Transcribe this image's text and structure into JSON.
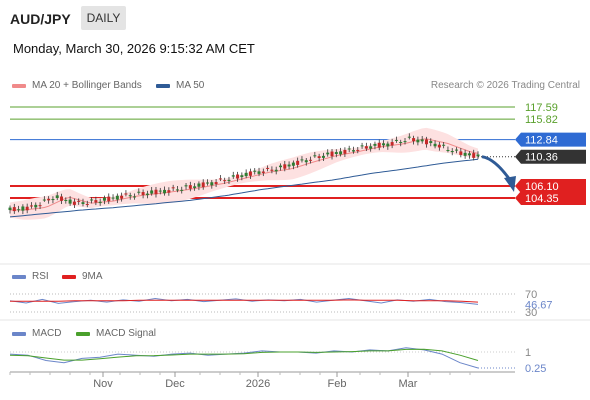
{
  "header": {
    "symbol": "AUD/JPY",
    "period": "DAILY",
    "datetime": "Monday, March 30, 2026 9:15:32 AM CET"
  },
  "main_chart": {
    "legend": [
      {
        "label": "MA 20 + Bollinger Bands",
        "color": "#f08a8a"
      },
      {
        "label": "MA 50",
        "color": "#2f5b96"
      }
    ],
    "credit": "Research © 2026 Trading Central"
  },
  "rsi_panel": {
    "legend": [
      {
        "label": "RSI",
        "color": "#6b86c9"
      },
      {
        "label": "9MA",
        "color": "#e02020"
      }
    ]
  },
  "macd_panel": {
    "legend": [
      {
        "label": "MACD",
        "color": "#6b86c9"
      },
      {
        "label": "MACD Signal",
        "color": "#4aa02c"
      }
    ]
  },
  "colors": {
    "resistance": "#5aa02c",
    "pivot": "#2f6bd3",
    "support": "#e02020",
    "arrow": "#2f5b96"
  },
  "chart_data": [
    {
      "type": "line",
      "name": "AUD/JPY daily price",
      "x_ticks": [
        "Nov",
        "Dec",
        "2026",
        "Feb",
        "Mar"
      ],
      "ylim": [
        101.6,
        118.6
      ],
      "levels": [
        {
          "label": "117.59",
          "value": 117.59,
          "kind": "resistance"
        },
        {
          "label": "115.82",
          "value": 115.82,
          "kind": "resistance"
        },
        {
          "label": "112.84",
          "value": 112.84,
          "kind": "pivot"
        },
        {
          "label": "110.36",
          "value": 110.36,
          "kind": "last"
        },
        {
          "label": "106.10",
          "value": 106.1,
          "kind": "support"
        },
        {
          "label": "104.35",
          "value": 104.35,
          "kind": "support"
        }
      ],
      "price_path": [
        102.6,
        103.0,
        104.5,
        103.6,
        103.9,
        104.6,
        105.0,
        105.4,
        105.9,
        106.5,
        107.3,
        108.1,
        108.6,
        109.6,
        110.5,
        111.1,
        111.8,
        112.2,
        113.0,
        112.3,
        111.1,
        110.4
      ],
      "ma50_path": [
        101.6,
        102.1,
        102.6,
        103.0,
        103.5,
        104.0,
        104.7,
        105.6,
        106.3,
        107.0,
        107.9,
        108.6,
        109.4,
        110.0
      ],
      "forecast": {
        "from": 110.36,
        "to": 104.35
      }
    },
    {
      "type": "line",
      "name": "RSI",
      "levels": [
        {
          "label": "70",
          "value": 70
        },
        {
          "label": "46.67",
          "value": 46.67
        },
        {
          "label": "30",
          "value": 30
        }
      ],
      "series": [
        {
          "name": "RSI",
          "values": [
            55,
            50,
            58,
            49,
            53,
            56,
            52,
            57,
            54,
            60,
            55,
            58,
            53,
            56,
            59,
            54,
            57,
            55,
            58,
            52,
            56,
            60,
            55,
            50,
            57,
            54,
            58,
            53,
            51,
            47
          ]
        },
        {
          "name": "9MA",
          "values": [
            54,
            54,
            54,
            54,
            55,
            55,
            55,
            55,
            56,
            56,
            56,
            56,
            56,
            56,
            56,
            56,
            56,
            56,
            56,
            56,
            56,
            57,
            56,
            56,
            56,
            55,
            55,
            55,
            54,
            52
          ]
        }
      ]
    },
    {
      "type": "line",
      "name": "MACD",
      "levels": [
        {
          "label": "1",
          "value": 1
        },
        {
          "label": "0.25",
          "value": 0.25
        }
      ],
      "series": [
        {
          "name": "MACD",
          "values": [
            0.9,
            0.85,
            0.6,
            0.5,
            0.7,
            0.75,
            0.9,
            0.85,
            0.8,
            0.9,
            0.95,
            0.85,
            0.9,
            0.95,
            1.05,
            1.0,
            1.0,
            0.95,
            1.05,
            1.0,
            1.1,
            1.05,
            1.2,
            1.1,
            0.9,
            0.5,
            0.25
          ]
        },
        {
          "name": "MACD Signal",
          "values": [
            0.85,
            0.82,
            0.72,
            0.62,
            0.62,
            0.68,
            0.76,
            0.82,
            0.83,
            0.86,
            0.9,
            0.9,
            0.9,
            0.92,
            0.98,
            1.0,
            1.0,
            0.98,
            1.0,
            1.02,
            1.05,
            1.05,
            1.12,
            1.13,
            1.05,
            0.85,
            0.6
          ]
        }
      ]
    }
  ]
}
